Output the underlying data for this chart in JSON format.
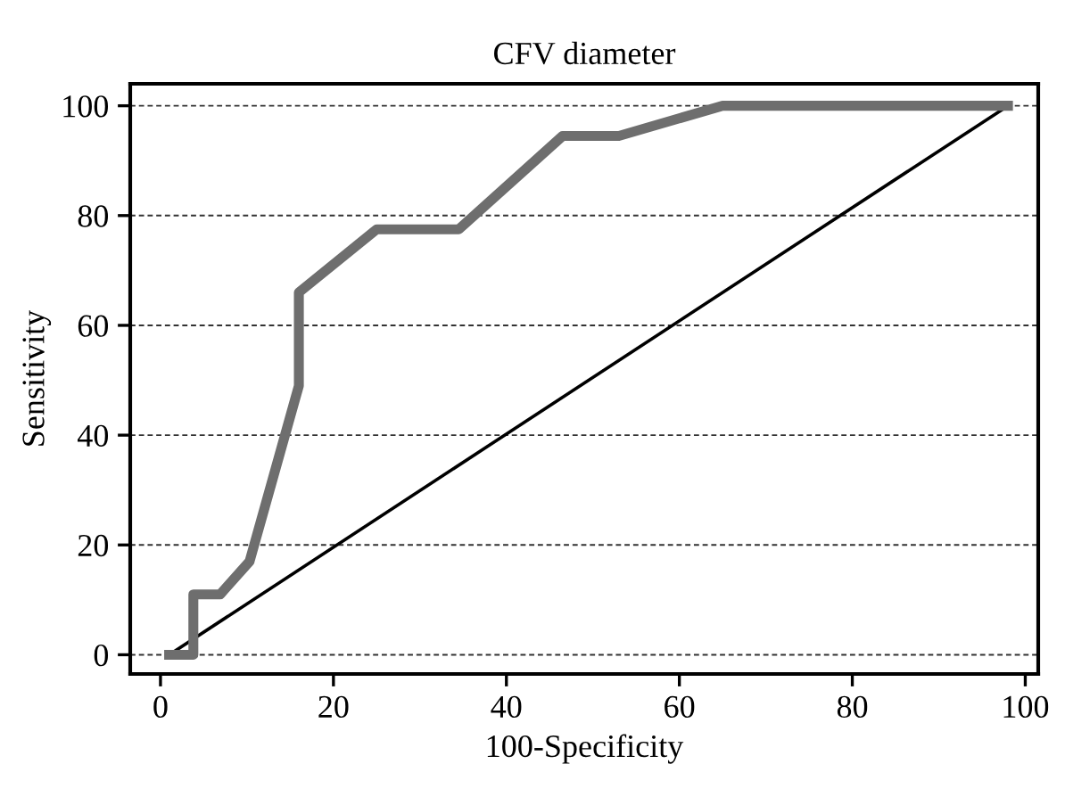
{
  "chart_data": {
    "type": "line",
    "title": "CFV diameter",
    "xlabel": "100-Specificity",
    "ylabel": "Sensitivity",
    "series": [
      {
        "color": "#6e6e6e",
        "x": [
          1,
          3.8,
          3.8,
          6.9,
          10.3,
          16,
          16,
          25,
          34.5,
          46.5,
          53,
          65,
          98
        ],
        "values": [
          0,
          0,
          11,
          11,
          17,
          49,
          66,
          77.5,
          77.5,
          94.5,
          94.5,
          100,
          100
        ]
      },
      {
        "color": "#000000",
        "x": [
          1,
          98
        ],
        "values": [
          0,
          100
        ]
      }
    ],
    "xlim": [
      -3.5,
      101.5
    ],
    "ylim": [
      -3.5,
      104
    ],
    "xticks": [
      0,
      20,
      40,
      60,
      80,
      100
    ],
    "yticks": [
      0,
      20,
      40,
      60,
      80,
      100
    ],
    "grid": "y",
    "line_style": "solid",
    "legend": false
  }
}
